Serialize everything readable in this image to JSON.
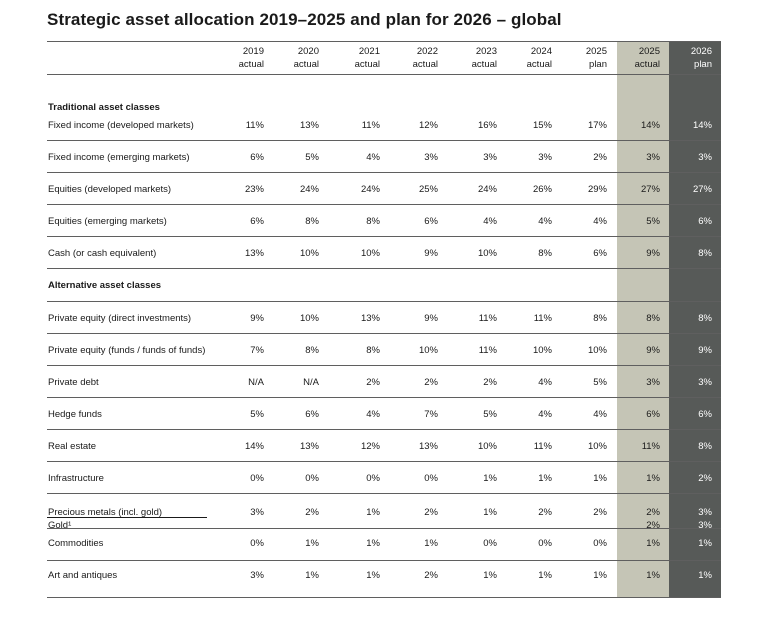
{
  "title": "Strategic asset allocation 2019–2025 and plan for 2026 – global",
  "colors": {
    "shade_2025_actual": "#c5c5b6",
    "shade_2026_plan": "#575a58"
  },
  "columns": [
    {
      "year": "2019",
      "type": "actual"
    },
    {
      "year": "2020",
      "type": "actual"
    },
    {
      "year": "2021",
      "type": "actual"
    },
    {
      "year": "2022",
      "type": "actual"
    },
    {
      "year": "2023",
      "type": "actual"
    },
    {
      "year": "2024",
      "type": "actual"
    },
    {
      "year": "2025",
      "type": "plan"
    },
    {
      "year": "2025",
      "type": "actual"
    },
    {
      "year": "2026",
      "type": "plan"
    }
  ],
  "rows": [
    {
      "kind": "section",
      "label": "Traditional asset classes"
    },
    {
      "kind": "data",
      "label": "Fixed income (developed markets)",
      "values": [
        "11%",
        "13%",
        "11%",
        "12%",
        "16%",
        "15%",
        "17%",
        "14%",
        "14%"
      ]
    },
    {
      "kind": "data",
      "label": "Fixed income (emerging markets)",
      "values": [
        "6%",
        "5%",
        "4%",
        "3%",
        "3%",
        "3%",
        "2%",
        "3%",
        "3%"
      ]
    },
    {
      "kind": "data",
      "label": "Equities (developed markets)",
      "values": [
        "23%",
        "24%",
        "24%",
        "25%",
        "24%",
        "26%",
        "29%",
        "27%",
        "27%"
      ]
    },
    {
      "kind": "data",
      "label": "Equities (emerging markets)",
      "values": [
        "6%",
        "8%",
        "8%",
        "6%",
        "4%",
        "4%",
        "4%",
        "5%",
        "6%"
      ]
    },
    {
      "kind": "data",
      "label": "Cash (or cash equivalent)",
      "values": [
        "13%",
        "10%",
        "10%",
        "9%",
        "10%",
        "8%",
        "6%",
        "9%",
        "8%"
      ]
    },
    {
      "kind": "section",
      "label": "Alternative asset classes"
    },
    {
      "kind": "data",
      "label": "Private equity (direct investments)",
      "values": [
        "9%",
        "10%",
        "13%",
        "9%",
        "11%",
        "11%",
        "8%",
        "8%",
        "8%"
      ]
    },
    {
      "kind": "data",
      "label": "Private equity (funds / funds of funds)",
      "values": [
        "7%",
        "8%",
        "8%",
        "10%",
        "11%",
        "10%",
        "10%",
        "9%",
        "9%"
      ]
    },
    {
      "kind": "data",
      "label": "Private debt",
      "values": [
        "N/A",
        "N/A",
        "2%",
        "2%",
        "2%",
        "4%",
        "5%",
        "3%",
        "3%"
      ]
    },
    {
      "kind": "data",
      "label": "Hedge funds",
      "values": [
        "5%",
        "6%",
        "4%",
        "7%",
        "5%",
        "4%",
        "4%",
        "6%",
        "6%"
      ]
    },
    {
      "kind": "data",
      "label": "Real estate",
      "values": [
        "14%",
        "13%",
        "12%",
        "13%",
        "10%",
        "11%",
        "10%",
        "11%",
        "8%"
      ]
    },
    {
      "kind": "data",
      "label": "Infrastructure",
      "values": [
        "0%",
        "0%",
        "0%",
        "0%",
        "1%",
        "1%",
        "1%",
        "1%",
        "2%"
      ]
    },
    {
      "kind": "data",
      "label": "Precious metals (incl. gold)",
      "values": [
        "3%",
        "2%",
        "1%",
        "2%",
        "1%",
        "2%",
        "2%",
        "2%",
        "3%"
      ]
    },
    {
      "kind": "data",
      "label": "Gold¹",
      "values": [
        "",
        "",
        "",
        "",
        "",
        "",
        "",
        "2%",
        "3%"
      ]
    },
    {
      "kind": "data",
      "label": "Commodities",
      "values": [
        "0%",
        "1%",
        "1%",
        "1%",
        "0%",
        "0%",
        "0%",
        "1%",
        "1%"
      ]
    },
    {
      "kind": "data",
      "label": "Art and antiques",
      "values": [
        "3%",
        "1%",
        "1%",
        "2%",
        "1%",
        "1%",
        "1%",
        "1%",
        "1%"
      ]
    }
  ]
}
